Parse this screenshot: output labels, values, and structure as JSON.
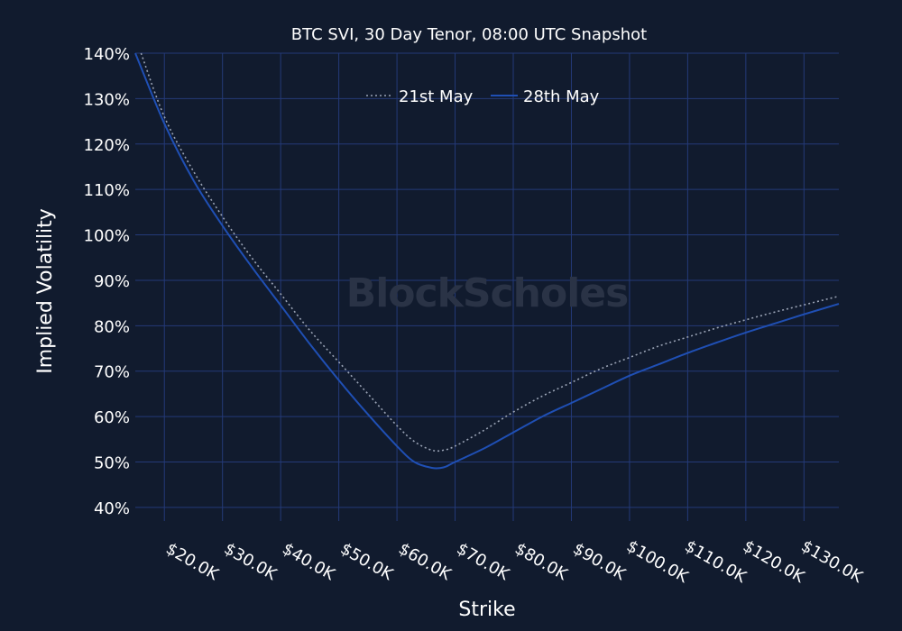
{
  "chart_data": {
    "type": "line",
    "title": "BTC SVI, 30 Day Tenor, 08:00 UTC Snapshot",
    "xlabel": "Strike",
    "ylabel": "Implied Volatility",
    "watermark": "BlockScholes",
    "xlim": [
      15000,
      136000
    ],
    "ylim": [
      37,
      140
    ],
    "x_ticks": [
      20000,
      30000,
      40000,
      50000,
      60000,
      70000,
      80000,
      90000,
      100000,
      110000,
      120000,
      130000
    ],
    "x_tick_labels": [
      "$20.0K",
      "$30.0K",
      "$40.0K",
      "$50.0K",
      "$60.0K",
      "$70.0K",
      "$80.0K",
      "$90.0K",
      "$100.0K",
      "$110.0K",
      "$120.0K",
      "$130.0K"
    ],
    "y_ticks": [
      40,
      50,
      60,
      70,
      80,
      90,
      100,
      110,
      120,
      130,
      140
    ],
    "y_tick_labels": [
      "40%",
      "50%",
      "60%",
      "70%",
      "80%",
      "90%",
      "100%",
      "110%",
      "120%",
      "130%",
      "140%"
    ],
    "grid": true,
    "legend_position": "top-center",
    "series": [
      {
        "name": "21st May",
        "color": "#9aa3b5",
        "dash": "dotted",
        "x": [
          16000,
          20000,
          25000,
          30000,
          35000,
          40000,
          45000,
          50000,
          55000,
          60000,
          63000,
          66000,
          68000,
          70000,
          75000,
          80000,
          85000,
          90000,
          95000,
          100000,
          105000,
          110000,
          115000,
          120000,
          125000,
          130000,
          136000
        ],
        "y": [
          140,
          126,
          114,
          104,
          95,
          87,
          79,
          72,
          65,
          58,
          54.5,
          52.6,
          52.6,
          53.5,
          57,
          61,
          64.5,
          67.5,
          70.5,
          73,
          75.5,
          77.5,
          79.5,
          81.3,
          83,
          84.6,
          86.5
        ]
      },
      {
        "name": "28th May",
        "color": "#1f4fb4",
        "dash": "solid",
        "x": [
          15000,
          20000,
          25000,
          30000,
          35000,
          40000,
          45000,
          50000,
          55000,
          60000,
          63000,
          66000,
          68000,
          70000,
          75000,
          80000,
          85000,
          90000,
          95000,
          100000,
          105000,
          110000,
          115000,
          120000,
          125000,
          130000,
          136000
        ],
        "y": [
          140,
          124.5,
          112,
          102,
          93,
          84.5,
          76,
          68,
          60.5,
          53.5,
          50,
          48.7,
          48.8,
          50,
          53,
          56.5,
          60,
          63,
          66,
          69,
          71.5,
          74,
          76.3,
          78.5,
          80.5,
          82.5,
          84.8
        ]
      }
    ]
  }
}
